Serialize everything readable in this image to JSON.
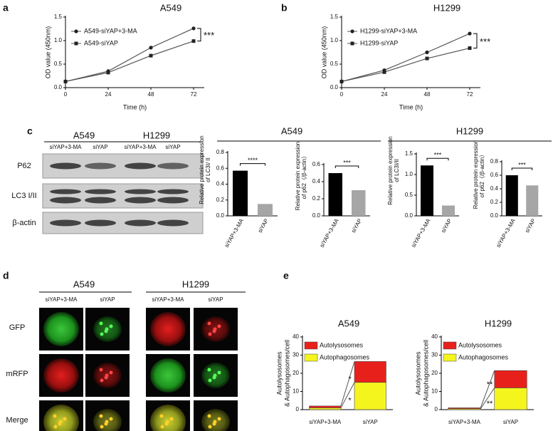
{
  "panel_labels": [
    "a",
    "b",
    "c",
    "d",
    "e"
  ],
  "chart_data": [
    {
      "type": "line",
      "title": "A549",
      "xlabel": "Time (h)",
      "ylabel": "OD value (450nm)",
      "x": [
        0,
        24,
        48,
        72
      ],
      "xlim": [
        0,
        78
      ],
      "xticks": [
        0,
        24,
        48,
        72
      ],
      "ylim": [
        0,
        1.5
      ],
      "yticks": [
        {
          "value": 0,
          "label": "0.0"
        },
        {
          "value": 0.5,
          "label": "0.5"
        },
        {
          "value": 1,
          "label": "1.0"
        },
        {
          "value": 1.5,
          "label": "1.5"
        }
      ],
      "series": [
        {
          "name": "A549-siYAP+3-MA",
          "color": "#555555",
          "marker": "circle",
          "values": [
            0.13,
            0.35,
            0.85,
            1.26
          ]
        },
        {
          "name": "A549-siYAP",
          "color": "#555555",
          "marker": "square",
          "values": [
            0.13,
            0.32,
            0.68,
            0.99
          ]
        }
      ],
      "annotation": "***",
      "legend": "upper left"
    },
    {
      "type": "line",
      "title": "H1299",
      "xlabel": "Time (h)",
      "ylabel": "OD value (450nm)",
      "x": [
        0,
        24,
        48,
        72
      ],
      "xlim": [
        0,
        78
      ],
      "xticks": [
        0,
        24,
        48,
        72
      ],
      "ylim": [
        0,
        1.5
      ],
      "yticks": [
        {
          "value": 0,
          "label": "0.0"
        },
        {
          "value": 0.5,
          "label": "0.5"
        },
        {
          "value": 1,
          "label": "1.0"
        },
        {
          "value": 1.5,
          "label": "1.5"
        }
      ],
      "series": [
        {
          "name": "H1299-siYAP+3-MA",
          "color": "#555555",
          "marker": "circle",
          "values": [
            0.13,
            0.37,
            0.75,
            1.15
          ]
        },
        {
          "name": "H1299-siYAP",
          "color": "#555555",
          "marker": "square",
          "values": [
            0.13,
            0.33,
            0.62,
            0.84
          ]
        }
      ],
      "annotation": "***",
      "legend": "upper left"
    },
    {
      "type": "bar",
      "ylabel": [
        "Relative protein expression",
        "of LC3I/ II"
      ],
      "categories": [
        "siYAP+3-MA",
        "siYAP"
      ],
      "values": [
        0.57,
        0.15
      ],
      "colors": [
        "#000000",
        "#a6a6a6"
      ],
      "ylim": [
        0,
        0.8
      ],
      "yticks": [
        {
          "value": 0,
          "label": "0.0"
        },
        {
          "value": 0.2,
          "label": "0.2"
        },
        {
          "value": 0.4,
          "label": "0.4"
        },
        {
          "value": 0.6,
          "label": "0.6"
        },
        {
          "value": 0.8,
          "label": "0.8"
        }
      ],
      "annotation": "****"
    },
    {
      "type": "bar",
      "ylabel": [
        "Relative protein expression",
        "of p62（/β-actin）"
      ],
      "categories": [
        "siYAP+3-MA",
        "siYAP"
      ],
      "values": [
        0.5,
        0.3
      ],
      "colors": [
        "#000000",
        "#a6a6a6"
      ],
      "ylim": [
        0,
        0.6
      ],
      "yticks": [
        {
          "value": 0,
          "label": "0.0"
        },
        {
          "value": 0.2,
          "label": "0.2"
        },
        {
          "value": 0.4,
          "label": "0.4"
        },
        {
          "value": 0.6,
          "label": "0.6"
        }
      ],
      "annotation": "***"
    },
    {
      "type": "bar",
      "ylabel": [
        "Relative protein expression",
        "of LC3I/II"
      ],
      "categories": [
        "siYAP+3-MA",
        "siYAP"
      ],
      "values": [
        1.22,
        0.25
      ],
      "colors": [
        "#000000",
        "#a6a6a6"
      ],
      "ylim": [
        0,
        1.5
      ],
      "yticks": [
        {
          "value": 0,
          "label": "0.0"
        },
        {
          "value": 0.5,
          "label": "0.5"
        },
        {
          "value": 1,
          "label": "1.0"
        },
        {
          "value": 1.5,
          "label": "1.5"
        }
      ],
      "annotation": "***"
    },
    {
      "type": "bar",
      "ylabel": [
        "Relative protein expression",
        "of p62（/β-actin）"
      ],
      "categories": [
        "siYAP+3-MA",
        "siYAP"
      ],
      "values": [
        0.6,
        0.45
      ],
      "colors": [
        "#000000",
        "#a6a6a6"
      ],
      "ylim": [
        0,
        0.8
      ],
      "yticks": [
        {
          "value": 0,
          "label": "0.0"
        },
        {
          "value": 0.2,
          "label": "0.2"
        },
        {
          "value": 0.4,
          "label": "0.4"
        },
        {
          "value": 0.6,
          "label": "0.6"
        },
        {
          "value": 0.8,
          "label": "0.8"
        }
      ],
      "annotation": "***"
    },
    {
      "type": "stacked_bar",
      "title": "A549",
      "ylabel": [
        "Autolysosomes",
        "& Autophagosomes/cell"
      ],
      "categories": [
        "siYAP+3-MA",
        "siYAP"
      ],
      "series": [
        {
          "name": "Autolysosomes",
          "color": "#e8201c",
          "values": [
            1,
            11.5
          ]
        },
        {
          "name": "Autophagosomes",
          "color": "#f5f51e",
          "values": [
            1,
            15
          ]
        }
      ],
      "ylim": [
        0,
        40
      ],
      "yticks": [
        0,
        10,
        20,
        30,
        40
      ],
      "annotations": [
        "*",
        "*"
      ],
      "legend": "upper left"
    },
    {
      "type": "stacked_bar",
      "title": "H1299",
      "ylabel": [
        "Autolysosomes",
        "& Autophagosomes/cell"
      ],
      "categories": [
        "siYAP+3-MA",
        "siYAP"
      ],
      "series": [
        {
          "name": "Autolysosomes",
          "color": "#e8201c",
          "values": [
            0.5,
            9.5
          ]
        },
        {
          "name": "Autophagosomes",
          "color": "#f5f51e",
          "values": [
            0.5,
            12
          ]
        }
      ],
      "ylim": [
        0,
        40
      ],
      "yticks": [
        0,
        10,
        20,
        30,
        40
      ],
      "annotations": [
        "**",
        "**"
      ],
      "legend": "upper left"
    }
  ],
  "bar_groups": [
    "A549",
    "H1299"
  ],
  "blot": {
    "groups": [
      "A549",
      "H1299"
    ],
    "lanes": [
      "siYAP+3-MA",
      "siYAP",
      "siYAP+3-MA",
      "siYAP"
    ],
    "rows": [
      "P62",
      "LC3 I/II",
      "β-actin"
    ]
  },
  "microscopy": {
    "groups": [
      "A549",
      "H1299"
    ],
    "columns": [
      "siYAP+3-MA",
      "siYAP",
      "siYAP+3-MA",
      "siYAP"
    ],
    "rows": [
      "GFP",
      "mRFP",
      "Merge"
    ]
  }
}
